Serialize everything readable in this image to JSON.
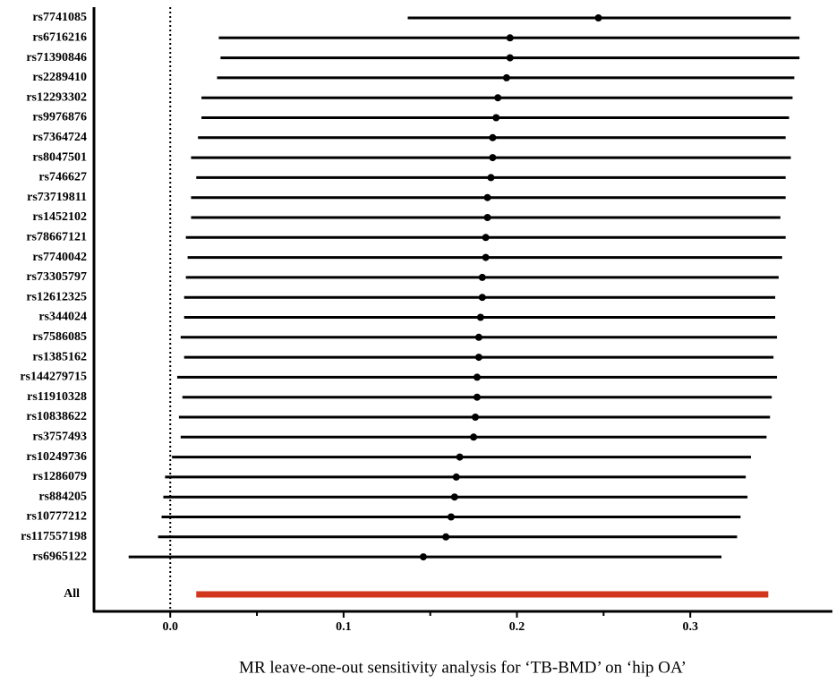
{
  "chart_data": {
    "type": "forest",
    "xlabel": "MR leave-one-out sensitivity analysis for ‘TB-BMD’ on ‘hip OA’",
    "categories": [
      "rs7741085",
      "rs6716216",
      "rs71390846",
      "rs2289410",
      "rs12293302",
      "rs9976876",
      "rs7364724",
      "rs8047501",
      "rs746627",
      "rs73719811",
      "rs1452102",
      "rs78667121",
      "rs7740042",
      "rs73305797",
      "rs12612325",
      "rs344024",
      "rs7586085",
      "rs1385162",
      "rs144279715",
      "rs11910328",
      "rs10838622",
      "rs3757493",
      "rs10249736",
      "rs1286079",
      "rs884205",
      "rs10777212",
      "rs117557198",
      "rs6965122"
    ],
    "values": [
      0.247,
      0.196,
      0.196,
      0.194,
      0.189,
      0.188,
      0.186,
      0.186,
      0.185,
      0.183,
      0.183,
      0.182,
      0.182,
      0.18,
      0.18,
      0.179,
      0.178,
      0.178,
      0.177,
      0.177,
      0.176,
      0.175,
      0.167,
      0.165,
      0.164,
      0.162,
      0.159,
      0.146
    ],
    "lower": [
      0.137,
      0.028,
      0.029,
      0.027,
      0.018,
      0.018,
      0.016,
      0.012,
      0.015,
      0.012,
      0.012,
      0.009,
      0.01,
      0.009,
      0.008,
      0.008,
      0.006,
      0.008,
      0.004,
      0.007,
      0.005,
      0.006,
      0.001,
      -0.003,
      -0.004,
      -0.005,
      -0.007,
      -0.024
    ],
    "upper": [
      0.358,
      0.363,
      0.363,
      0.36,
      0.359,
      0.357,
      0.355,
      0.358,
      0.355,
      0.355,
      0.352,
      0.355,
      0.353,
      0.351,
      0.349,
      0.349,
      0.35,
      0.348,
      0.35,
      0.347,
      0.346,
      0.344,
      0.335,
      0.332,
      0.333,
      0.329,
      0.327,
      0.318
    ],
    "color": "#000000",
    "overall": {
      "label": "All",
      "lower": 0.015,
      "upper": 0.345,
      "color": "#d2361e"
    },
    "reference_line": 0,
    "xlim": [
      -0.044,
      0.382
    ],
    "xticks": [
      {
        "value": 0,
        "label": "0.0"
      },
      0.1,
      0.2,
      0.3
    ],
    "minor_xticks": [
      0.05,
      0.15,
      0.25
    ]
  }
}
